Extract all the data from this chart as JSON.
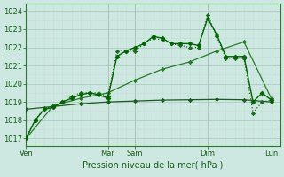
{
  "background_color": "#cce8e0",
  "plot_bg_color": "#cce8e0",
  "grid_major_color": "#b8d0c8",
  "grid_minor_color": "#d8ece8",
  "ylim": [
    1016.6,
    1024.4
  ],
  "yticks": [
    1017,
    1018,
    1019,
    1020,
    1021,
    1022,
    1023,
    1024
  ],
  "xlabel": "Pression niveau de la mer( hPa )",
  "xtick_labels": [
    "Ven",
    "Mar",
    "Sam",
    "Dim",
    "Lun"
  ],
  "xtick_positions": [
    0,
    9,
    12,
    20,
    27
  ],
  "x_total_min": 0,
  "x_total_max": 28,
  "vline_positions": [
    0,
    9,
    12,
    20,
    27
  ],
  "series1_x": [
    0,
    1,
    2,
    3,
    4,
    5,
    6,
    7,
    8,
    9,
    10,
    11,
    12,
    13,
    14,
    15,
    16,
    17,
    18,
    19,
    20,
    21,
    22,
    23,
    24,
    25,
    26,
    27
  ],
  "series1_y": [
    1017.0,
    1018.0,
    1018.6,
    1018.7,
    1019.0,
    1019.2,
    1019.4,
    1019.5,
    1019.4,
    1019.2,
    1021.5,
    1021.8,
    1022.0,
    1022.2,
    1022.6,
    1022.5,
    1022.2,
    1022.2,
    1022.2,
    1022.1,
    1023.6,
    1022.7,
    1021.5,
    1021.5,
    1021.5,
    1019.0,
    1019.5,
    1019.1
  ],
  "series2_x": [
    0,
    1,
    2,
    3,
    4,
    5,
    6,
    7,
    8,
    9,
    10,
    11,
    12,
    13,
    14,
    15,
    16,
    17,
    18,
    19,
    20,
    21,
    22,
    23,
    24,
    25,
    26,
    27
  ],
  "series2_y": [
    1017.05,
    1018.0,
    1018.65,
    1018.75,
    1019.0,
    1019.3,
    1019.5,
    1019.5,
    1019.5,
    1019.3,
    1021.8,
    1021.8,
    1021.8,
    1022.2,
    1022.5,
    1022.4,
    1022.2,
    1022.1,
    1022.0,
    1022.0,
    1023.8,
    1022.6,
    1021.4,
    1021.4,
    1021.4,
    1018.4,
    1019.0,
    1019.1
  ],
  "series3_x": [
    0,
    3,
    6,
    9,
    12,
    15,
    18,
    21,
    24,
    27
  ],
  "series3_y": [
    1017.0,
    1018.8,
    1019.2,
    1019.5,
    1020.2,
    1020.8,
    1021.2,
    1021.8,
    1022.3,
    1019.2
  ],
  "series4_x": [
    0,
    3,
    6,
    9,
    12,
    15,
    18,
    21,
    24,
    27
  ],
  "series4_y": [
    1018.6,
    1018.75,
    1018.9,
    1019.0,
    1019.05,
    1019.1,
    1019.12,
    1019.14,
    1019.12,
    1019.0
  ]
}
